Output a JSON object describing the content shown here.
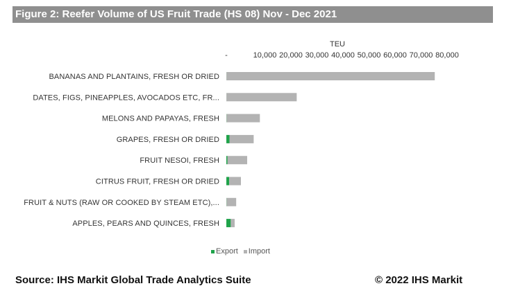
{
  "title": "Figure 2: Reefer Volume of US Fruit Trade (HS 08) Nov - Dec 2021",
  "source": "Source: IHS Markit Global Trade Analytics Suite",
  "copyright": "© 2022 IHS Markit",
  "colors": {
    "export": "#1fa34a",
    "import": "#b3b3b3",
    "title_bg": "#8f8f8f"
  },
  "chart_data": {
    "type": "bar",
    "orientation": "horizontal",
    "stacked": true,
    "unit_label": "TEU",
    "x_ticks": [
      "-",
      "10,000",
      "20,000",
      "30,000",
      "40,000",
      "50,000",
      "60,000",
      "70,000",
      "80,000"
    ],
    "xlim": [
      0,
      80000
    ],
    "categories": [
      "BANANAS AND PLANTAINS, FRESH OR DRIED",
      "DATES, FIGS, PINEAPPLES, AVOCADOS ETC, FR...",
      "MELONS AND PAPAYAS, FRESH",
      "GRAPES, FRESH OR DRIED",
      "FRUIT NESOI, FRESH",
      "CITRUS FRUIT, FRESH OR DRIED",
      "FRUIT & NUTS (RAW OR COOKED BY STEAM ETC),...",
      "APPLES, PEARS AND QUINCES, FRESH"
    ],
    "series": [
      {
        "name": "Export",
        "values": [
          50,
          30,
          80,
          1200,
          400,
          1100,
          80,
          1700
        ]
      },
      {
        "name": "Import",
        "values": [
          80000,
          27000,
          12800,
          9300,
          7600,
          4500,
          3700,
          1500
        ]
      }
    ],
    "legend": "bottom",
    "grid": false
  }
}
